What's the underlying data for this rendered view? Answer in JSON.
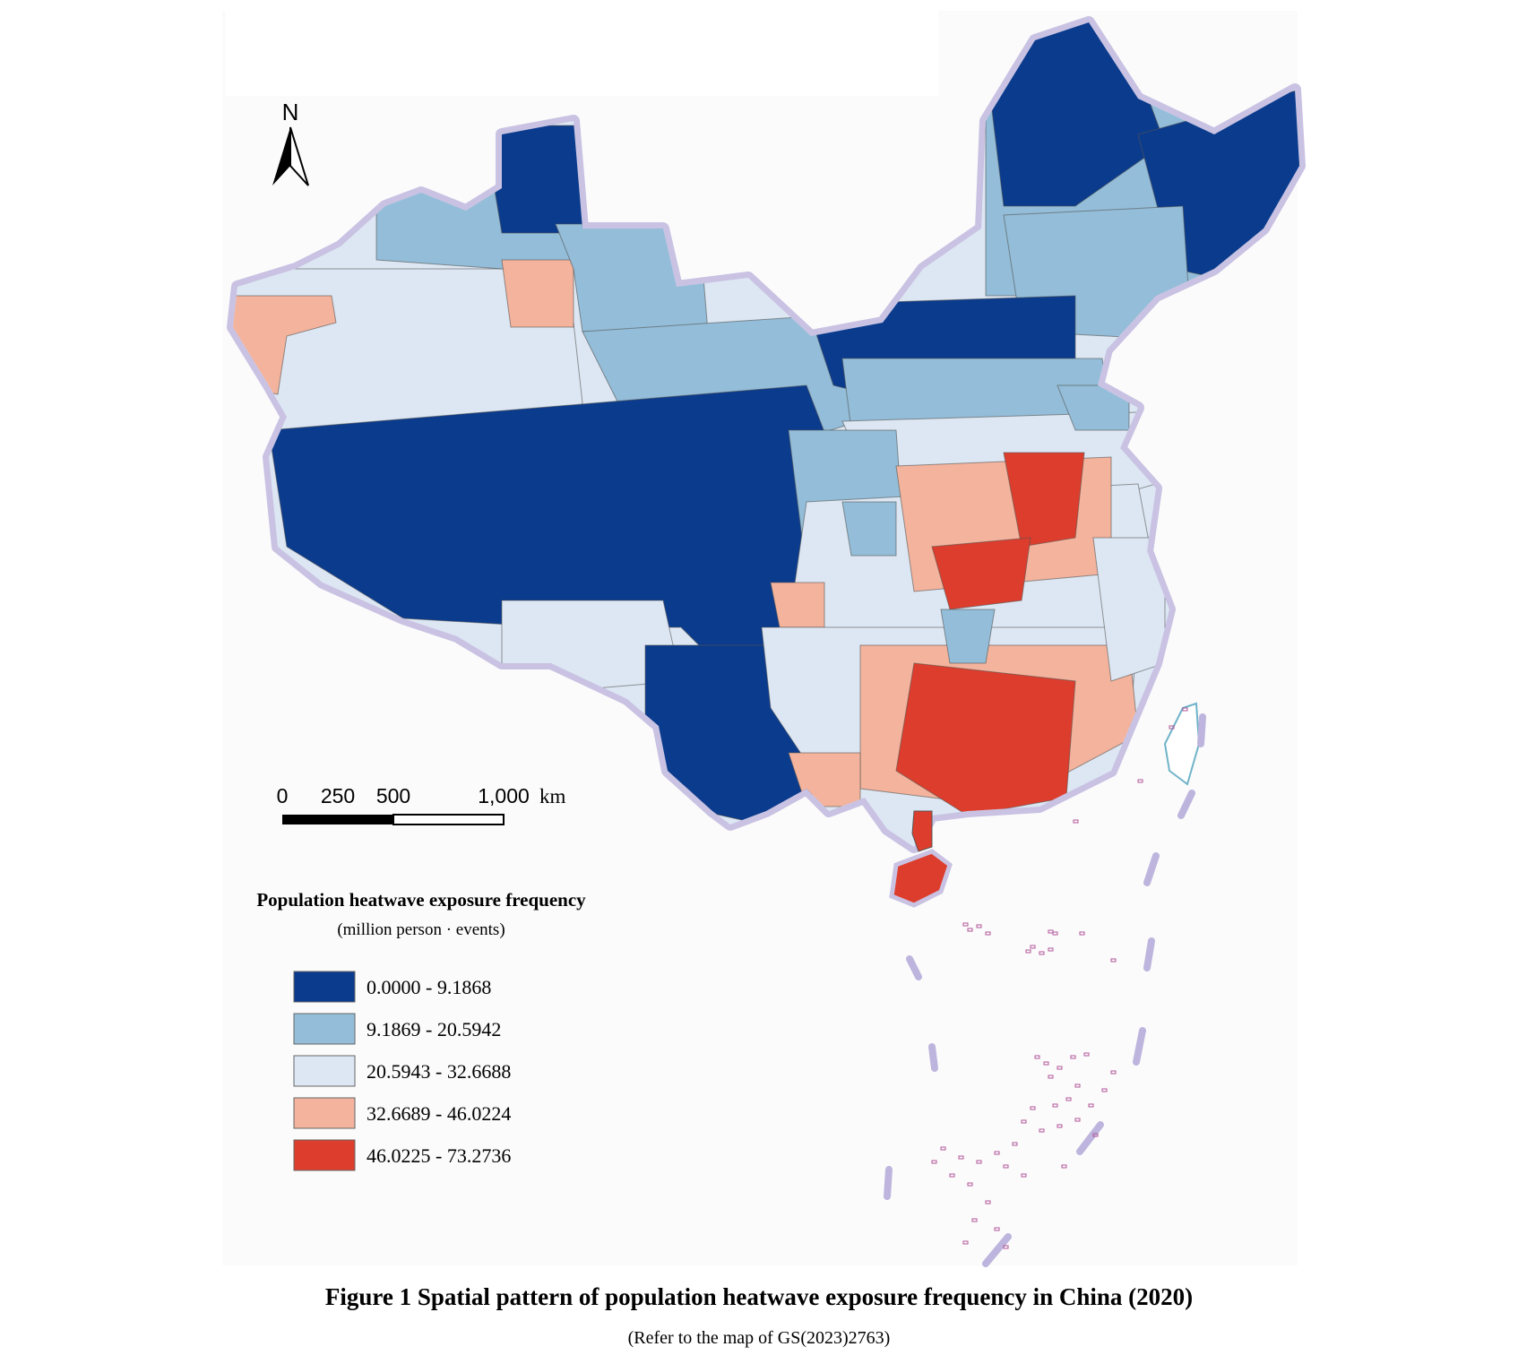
{
  "map": {
    "north_arrow_label": "N",
    "scale_bar": {
      "ticks": [
        "0",
        "250",
        "500",
        "1,000"
      ],
      "unit": "km"
    },
    "legend": {
      "title": "Population heatwave exposure frequency",
      "subtitle": "(million person · events)",
      "classes": [
        {
          "label": "0.0000 - 9.1868",
          "color": "#0b3b8c"
        },
        {
          "label": "9.1869 - 20.5942",
          "color": "#93bdd8"
        },
        {
          "label": "20.5943 - 32.6688",
          "color": "#dde7f3"
        },
        {
          "label": "32.6689 - 46.0224",
          "color": "#f3b39c"
        },
        {
          "label": "46.0225 - 73.2736",
          "color": "#dd3d2c"
        }
      ]
    },
    "colors": {
      "border_glow": "#bfb7dc",
      "island_outline": "#b0559a",
      "region_edge": "#555555"
    }
  },
  "caption": {
    "title": "Figure 1  Spatial pattern of population heatwave exposure frequency in China (2020)",
    "note": "(Refer to the map of GS(2023)2763)"
  }
}
